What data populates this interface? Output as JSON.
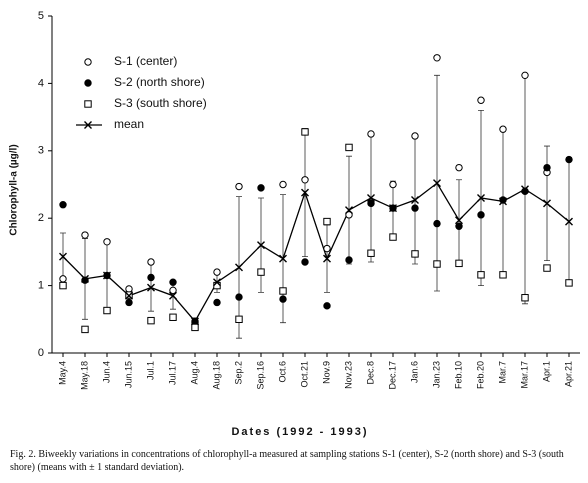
{
  "chart_data": {
    "type": "line",
    "y_label": "Chlorophyll-a (µg/l)",
    "x_label": "Dates (1992 - 1993)",
    "caption": "Fig. 2. Biweekly variations in concentrations of chlorophyll-a measured at sampling stations S-1 (center), S-2 (north shore) and S-3 (south shore) (means with ± 1 standard deviation).",
    "categories": [
      "May.4",
      "May.18",
      "Jun.4",
      "Jun.15",
      "Jul.1",
      "Jul.17",
      "Aug.4",
      "Aug.18",
      "Sep.2",
      "Sep.16",
      "Oct.6",
      "Oct.21",
      "Nov.9",
      "Nov.23",
      "Dec.8",
      "Dec.17",
      "Jan.6",
      "Jan.23",
      "Feb.10",
      "Feb.20",
      "Mar.7",
      "Mar.17",
      "Apr.1",
      "Apr.21"
    ],
    "series": [
      {
        "name": "S-1 (center)",
        "color": "#000000",
        "marker": "circle-open",
        "values": [
          1.1,
          1.75,
          1.65,
          0.95,
          1.35,
          0.93,
          0.45,
          1.2,
          2.47,
          null,
          2.5,
          2.57,
          1.55,
          2.05,
          3.25,
          2.5,
          3.22,
          4.38,
          2.75,
          3.75,
          3.32,
          4.12,
          2.68,
          null
        ]
      },
      {
        "name": "S-2 (north shore)",
        "color": "#000000",
        "marker": "circle-filled",
        "values": [
          2.2,
          1.08,
          1.15,
          0.75,
          1.12,
          1.05,
          0.47,
          0.75,
          0.83,
          2.45,
          0.8,
          1.35,
          0.7,
          1.38,
          2.22,
          2.15,
          2.15,
          1.92,
          1.88,
          2.05,
          2.27,
          2.4,
          2.75,
          2.87
        ]
      },
      {
        "name": "S-3 (south shore)",
        "color": "#000000",
        "marker": "square-open",
        "values": [
          1.0,
          0.35,
          0.63,
          0.86,
          0.48,
          0.53,
          0.38,
          1.0,
          0.5,
          1.2,
          0.92,
          3.28,
          1.95,
          3.05,
          1.48,
          1.72,
          1.47,
          1.32,
          1.33,
          1.16,
          1.16,
          0.82,
          1.26,
          1.04
        ]
      },
      {
        "name": "mean",
        "color": "#000000",
        "marker": "cross",
        "line": true,
        "values": [
          1.43,
          1.1,
          1.15,
          0.85,
          0.97,
          0.85,
          0.47,
          1.05,
          1.27,
          1.6,
          1.4,
          2.38,
          1.4,
          2.12,
          2.3,
          2.15,
          2.27,
          2.52,
          1.97,
          2.3,
          2.25,
          2.43,
          2.22,
          1.95
        ],
        "errors": [
          0.35,
          0.6,
          0.5,
          0.1,
          0.35,
          0.2,
          0.05,
          0.15,
          1.05,
          0.7,
          0.95,
          0.95,
          0.5,
          0.8,
          0.95,
          0.4,
          0.95,
          1.6,
          0.6,
          1.3,
          1.05,
          1.7,
          0.85,
          0.95
        ]
      }
    ],
    "ylim": [
      0,
      5
    ],
    "yticks": [
      0,
      1,
      2,
      3,
      4,
      5
    ],
    "legend": "top-left"
  }
}
